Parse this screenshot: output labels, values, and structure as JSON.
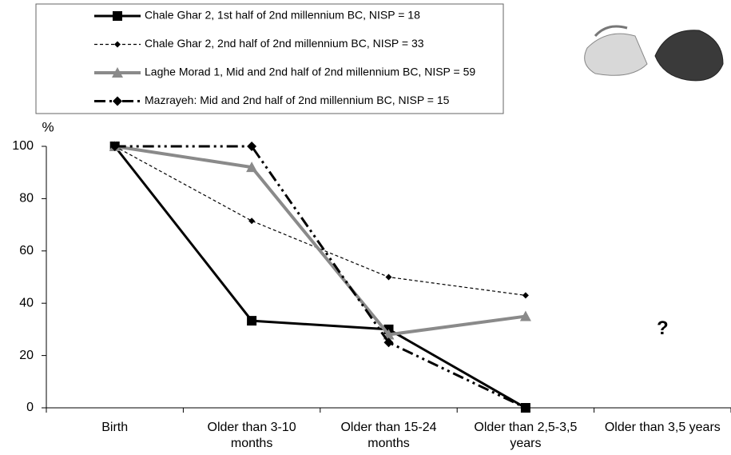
{
  "chart_data": {
    "type": "line",
    "y_label": "%",
    "categories": [
      "Birth",
      "Older than 3-10 months",
      "Older than 15-24 months",
      "Older than 2,5-3,5 years",
      "Older than 3,5 years"
    ],
    "ylim": [
      0,
      100
    ],
    "yticks": [
      0,
      20,
      40,
      60,
      80,
      100
    ],
    "series": [
      {
        "name": "Chale Ghar 2, 1st half of 2nd millennium BC, NISP = 18",
        "color": "#000000",
        "width": 3,
        "dash": "none",
        "marker": "square",
        "values": [
          100,
          33.3,
          30,
          0,
          null
        ]
      },
      {
        "name": "Chale Ghar 2, 2nd half of 2nd millennium BC, NISP = 33",
        "color": "#000000",
        "width": 1.2,
        "dash": "4,3",
        "marker": "small-diamond",
        "values": [
          100,
          71.5,
          50,
          43,
          null
        ]
      },
      {
        "name": "Laghe Morad 1, Mid and 2nd half of 2nd millennium BC, NISP = 59",
        "color": "#8a8a8a",
        "width": 4,
        "dash": "none",
        "marker": "triangle",
        "values": [
          100,
          92,
          28,
          35,
          null
        ]
      },
      {
        "name": "Mazrayeh: Mid and 2nd half of 2nd millennium BC, NISP = 15",
        "color": "#000000",
        "width": 3,
        "dash": "14,5,3,5,3,5",
        "marker": "diamond",
        "values": [
          100,
          100,
          25,
          0,
          null
        ]
      }
    ],
    "annotations": [
      {
        "text": "?",
        "category": 4,
        "y": 30
      }
    ]
  }
}
